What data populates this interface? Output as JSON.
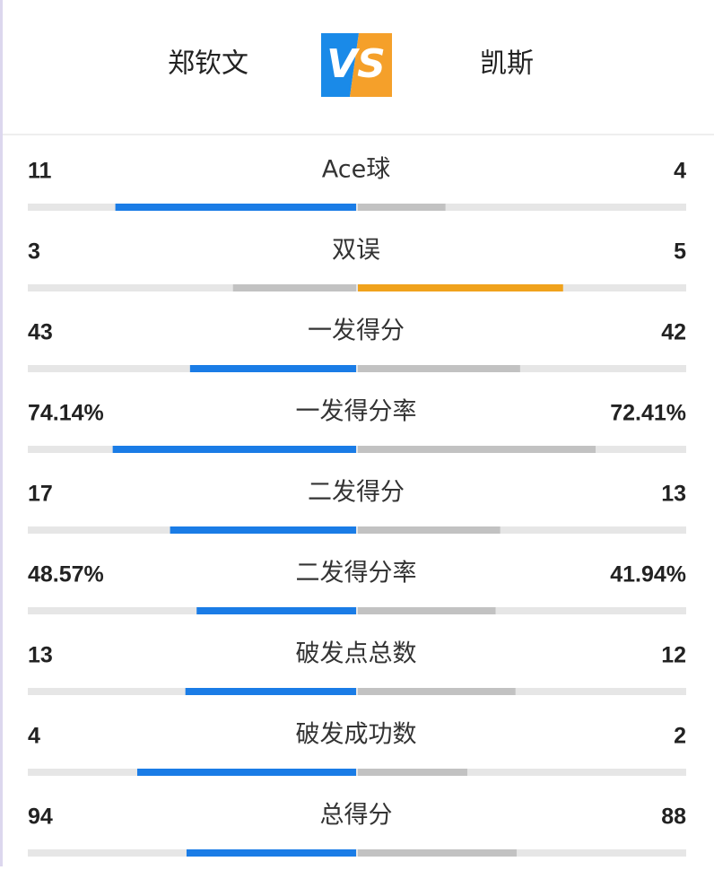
{
  "header": {
    "left_player": "郑钦文",
    "logo": "VS",
    "right_player": "凯斯"
  },
  "stats": [
    {
      "label": "Ace球",
      "left": 11,
      "right": 4
    },
    {
      "label": "双误",
      "left": 3,
      "right": 5
    },
    {
      "label": "一发得分",
      "left": 43,
      "right": 42
    },
    {
      "label": "一发得分率",
      "left": {
        "value": 74.14,
        "label": "74.14%"
      },
      "right": {
        "value": 72.41,
        "label": "72.41%"
      }
    },
    {
      "label": "二发得分",
      "left": 17,
      "right": 13
    },
    {
      "label": "二发得分率",
      "left": {
        "value": 48.57,
        "label": "48.57%"
      },
      "right": {
        "value": 41.94,
        "label": "41.94%"
      }
    },
    {
      "label": "破发点总数",
      "left": 13,
      "right": 12
    },
    {
      "label": "破发成功数",
      "left": 4,
      "right": 2
    },
    {
      "label": "总得分",
      "left": 94,
      "right": 88
    }
  ],
  "colors": {
    "left": "#1a7ce6",
    "right": "#f0a21c",
    "lose": "#c2c2c2",
    "track": "#e6e6e6"
  }
}
